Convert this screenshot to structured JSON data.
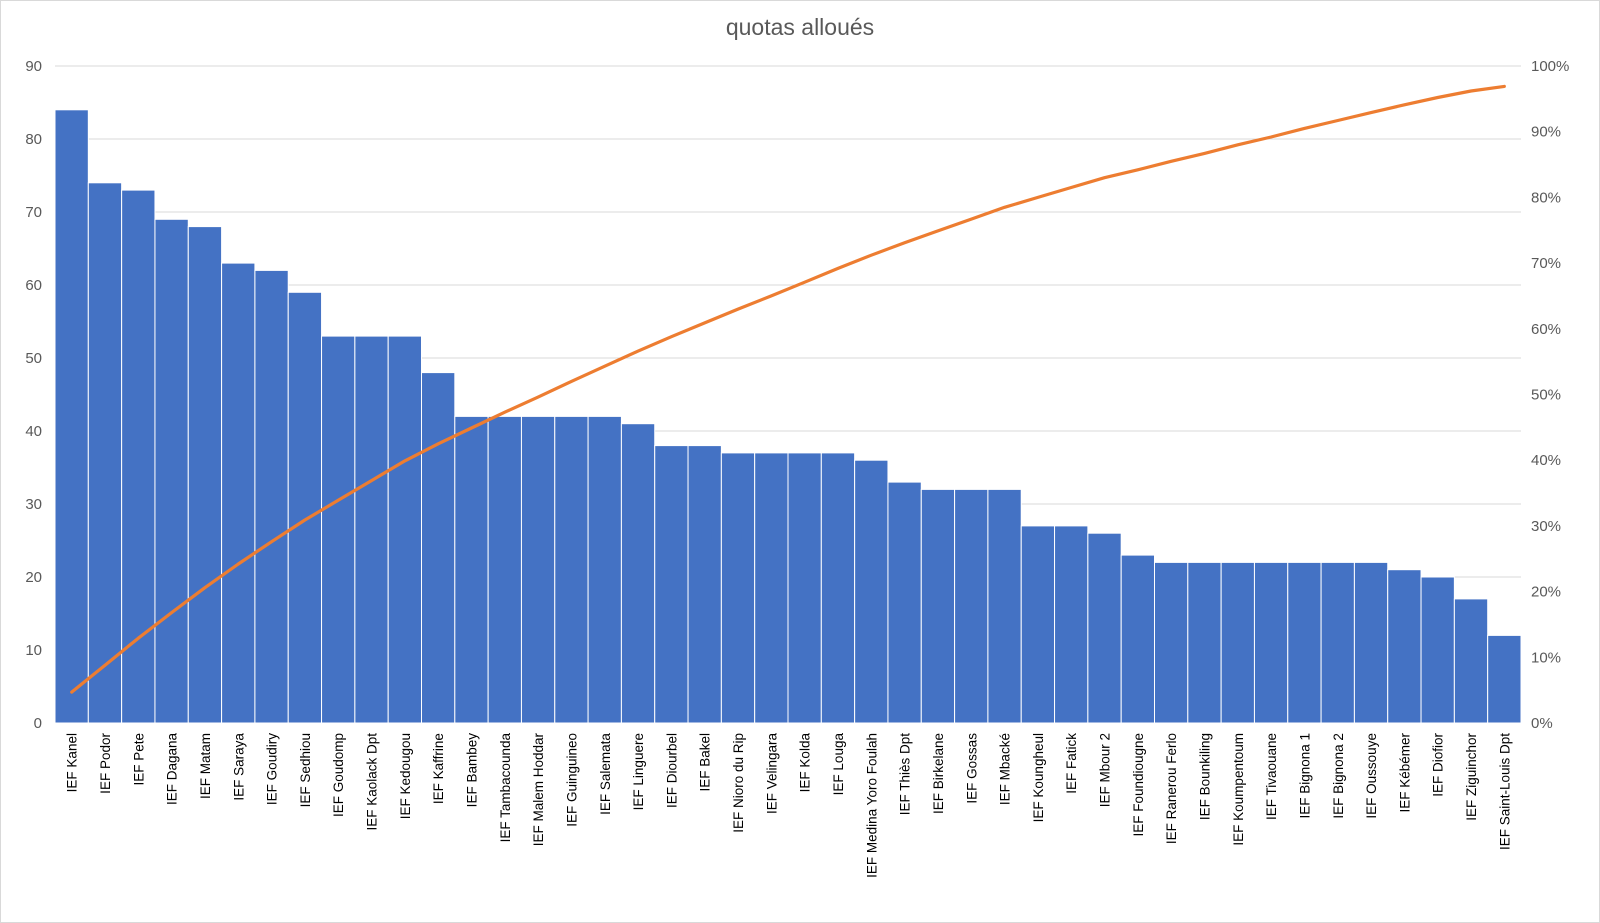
{
  "chart_data": {
    "type": "bar",
    "title": "quotas alloués",
    "xlabel": "",
    "ylabel": "",
    "categories": [
      "IEF Kanel",
      "IEF Podor",
      "IEF Pete",
      "IEF Dagana",
      "IEF Matam",
      "IEF Saraya",
      "IEF Goudiry",
      "IEF Sedhiou",
      "IEF Goudomp",
      "IEF Kaolack Dpt",
      "IEF Kedougou",
      "IEF Kaffrine",
      "IEF Bambey",
      "IEF Tambacounda",
      "IEF Malem Hoddar",
      "IEF Guinguineo",
      "IEF Salemata",
      "IEF Linguere",
      "IEF Diourbel",
      "IEF Bakel",
      "IEF Nioro du Rip",
      "IEF Velingara",
      "IEF Kolda",
      "IEF Louga",
      "IEF Medina Yoro Foulah",
      "IEF Thiès Dpt",
      "IEF Birkelane",
      "IEF Gossas",
      "IEF Mbacké",
      "IEF Koungheul",
      "IEF Fatick",
      "IEF Mbour 2",
      "IEF Foundiougne",
      "IEF Ranerou Ferlo",
      "IEF Bounkiling",
      "IEF Koumpentoum",
      "IEF Tivaouane",
      "IEF Bignona 1",
      "IEF Bignona 2",
      "IEF Oussouye",
      "IEF Kébémer",
      "IEF Diofior",
      "IEF Ziguinchor",
      "IEF Saint-Louis Dpt"
    ],
    "series": [
      {
        "type": "bar",
        "axis": "left",
        "color": "#4472c4",
        "values": [
          84,
          74,
          73,
          69,
          68,
          63,
          62,
          59,
          53,
          53,
          53,
          48,
          42,
          42,
          42,
          42,
          42,
          41,
          38,
          38,
          37,
          37,
          37,
          37,
          36,
          33,
          32,
          32,
          32,
          27,
          27,
          26,
          23,
          22,
          22,
          22,
          22,
          22,
          22,
          22,
          21,
          20,
          17,
          12
        ]
      },
      {
        "type": "line",
        "axis": "right",
        "color": "#ed7d31",
        "values": [
          4.7,
          8.8,
          12.9,
          16.8,
          20.6,
          24.2,
          27.6,
          30.9,
          33.9,
          36.9,
          39.9,
          42.5,
          44.9,
          47.3,
          49.6,
          52.0,
          54.3,
          56.6,
          58.8,
          60.9,
          63.0,
          65.0,
          67.1,
          69.2,
          71.2,
          73.1,
          74.9,
          76.7,
          78.5,
          80.0,
          81.5,
          83.0,
          84.2,
          85.5,
          86.7,
          88.0,
          89.2,
          90.5,
          91.7,
          92.9,
          94.1,
          95.2,
          96.2,
          96.9
        ]
      }
    ],
    "ylim": [
      0,
      90
    ],
    "yticks": [
      0,
      10,
      20,
      30,
      40,
      50,
      60,
      70,
      80,
      90
    ],
    "y2lim": [
      0,
      100
    ],
    "y2ticks": [
      "0%",
      "10%",
      "20%",
      "30%",
      "40%",
      "50%",
      "60%",
      "70%",
      "80%",
      "90%",
      "100%"
    ],
    "grid": true,
    "legend": "none"
  }
}
